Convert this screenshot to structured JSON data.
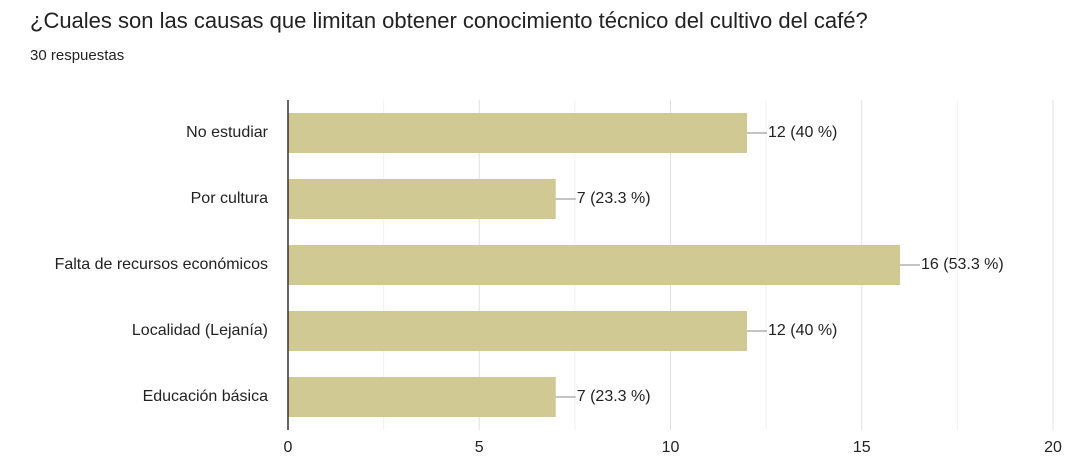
{
  "chart_data": {
    "type": "barh",
    "title": "¿Cuales son las causas que limitan obtener conocimiento técnico del cultivo del café?",
    "subtitle": "30 respuestas",
    "categories": [
      "No estudiar",
      "Por cultura",
      "Falta de recursos económicos",
      "Localidad (Lejanía)",
      "Educación básica"
    ],
    "values": [
      12,
      7,
      16,
      12,
      7
    ],
    "value_labels": [
      "12 (40 %)",
      "7 (23.3 %)",
      "16 (53.3 %)",
      "12 (40 %)",
      "7 (23.3 %)"
    ],
    "color": "#d0c994",
    "xlim": [
      0,
      20
    ],
    "xticks": [
      0,
      5,
      10,
      15,
      20
    ],
    "xminorticks": [
      2.5,
      7.5,
      12.5,
      17.5
    ],
    "grid": true
  }
}
